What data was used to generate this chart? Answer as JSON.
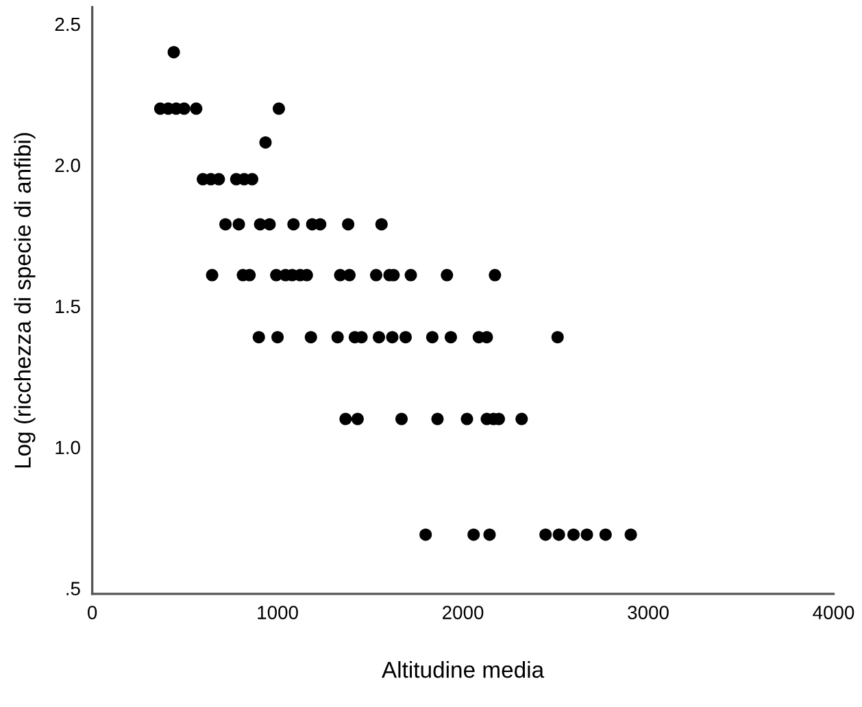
{
  "chart_data": {
    "type": "scatter",
    "xlabel": "Altitudine media",
    "ylabel": "Log (ricchezza di specie di anfibi)",
    "series": [
      {
        "color": "#000000",
        "x": [
          440,
          367,
          410,
          453,
          496,
          561,
          1007,
          935,
          597,
          640,
          683,
          777,
          820,
          863,
          719,
          791,
          906,
          957,
          1086,
          1187,
          1230,
          1381,
          1561,
          647,
          813,
          849,
          993,
          1043,
          1079,
          1122,
          1158,
          1338,
          1388,
          1532,
          1604,
          1626,
          1719,
          1914,
          2173,
          899,
          1000,
          1180,
          1324,
          1417,
          1453,
          1547,
          1619,
          1691,
          1835,
          1935,
          2086,
          2129,
          2511,
          1367,
          1432,
          1669,
          1863,
          2022,
          2129,
          2165,
          2194,
          2317,
          1799,
          2058,
          2144,
          2446,
          2518,
          2597,
          2669,
          2770,
          2906
        ],
        "values": [
          2.4,
          2.2,
          2.2,
          2.2,
          2.2,
          2.2,
          2.2,
          2.08,
          1.95,
          1.95,
          1.95,
          1.95,
          1.95,
          1.95,
          1.79,
          1.79,
          1.79,
          1.79,
          1.79,
          1.79,
          1.79,
          1.79,
          1.79,
          1.61,
          1.61,
          1.61,
          1.61,
          1.61,
          1.61,
          1.61,
          1.61,
          1.61,
          1.61,
          1.61,
          1.61,
          1.61,
          1.61,
          1.61,
          1.61,
          1.39,
          1.39,
          1.39,
          1.39,
          1.39,
          1.39,
          1.39,
          1.39,
          1.39,
          1.39,
          1.39,
          1.39,
          1.39,
          1.39,
          1.1,
          1.1,
          1.1,
          1.1,
          1.1,
          1.1,
          1.1,
          1.1,
          1.1,
          0.69,
          0.69,
          0.69,
          0.69,
          0.69,
          0.69,
          0.69,
          0.69,
          0.69
        ]
      }
    ],
    "marker": "circle",
    "grid": false,
    "legend": false,
    "xlim": [
      0,
      4000
    ],
    "xticks": [
      0,
      1000,
      2000,
      3000,
      4000
    ],
    "ylim": [
      0.48,
      2.56
    ],
    "yticks": [
      {
        "value": 2.5,
        "label": "2.5"
      },
      {
        "value": 2.0,
        "label": "2.0"
      },
      {
        "value": 1.5,
        "label": "1.5"
      },
      {
        "value": 1.0,
        "label": "1.0"
      },
      {
        "value": 0.5,
        "label": ".5"
      }
    ]
  }
}
